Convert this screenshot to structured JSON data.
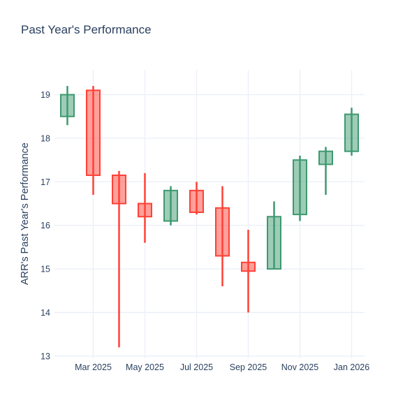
{
  "chart_data": {
    "type": "candlestick",
    "title": "Past Year's Performance",
    "xlabel": "",
    "ylabel": "ARR's Past Year's Performance",
    "categories": [
      "Feb 2025",
      "Mar 2025",
      "Apr 2025",
      "May 2025",
      "Jun 2025",
      "Jul 2025",
      "Aug 2025",
      "Sep 2025",
      "Oct 2025",
      "Nov 2025",
      "Dec 2025",
      "Jan 2026"
    ],
    "series": [
      {
        "month": "Feb 2025",
        "open": 18.5,
        "high": 19.2,
        "low": 18.3,
        "close": 19.0,
        "direction": "increasing"
      },
      {
        "month": "Mar 2025",
        "open": 19.1,
        "high": 19.2,
        "low": 16.7,
        "close": 17.15,
        "direction": "decreasing"
      },
      {
        "month": "Apr 2025",
        "open": 17.15,
        "high": 17.25,
        "low": 13.2,
        "close": 16.5,
        "direction": "decreasing"
      },
      {
        "month": "May 2025",
        "open": 16.5,
        "high": 17.2,
        "low": 15.6,
        "close": 16.2,
        "direction": "decreasing"
      },
      {
        "month": "Jun 2025",
        "open": 16.1,
        "high": 16.9,
        "low": 16.0,
        "close": 16.8,
        "direction": "increasing"
      },
      {
        "month": "Jul 2025",
        "open": 16.8,
        "high": 17.0,
        "low": 16.25,
        "close": 16.3,
        "direction": "decreasing"
      },
      {
        "month": "Aug 2025",
        "open": 16.4,
        "high": 16.9,
        "low": 14.6,
        "close": 15.3,
        "direction": "decreasing"
      },
      {
        "month": "Sep 2025",
        "open": 15.15,
        "high": 15.9,
        "low": 14.0,
        "close": 14.95,
        "direction": "decreasing"
      },
      {
        "month": "Oct 2025",
        "open": 15.0,
        "high": 16.55,
        "low": 15.0,
        "close": 16.2,
        "direction": "increasing"
      },
      {
        "month": "Nov 2025",
        "open": 16.25,
        "high": 17.6,
        "low": 16.1,
        "close": 17.5,
        "direction": "increasing"
      },
      {
        "month": "Dec 2025",
        "open": 17.4,
        "high": 17.8,
        "low": 16.7,
        "close": 17.7,
        "direction": "increasing"
      },
      {
        "month": "Jan 2026",
        "open": 17.7,
        "high": 18.7,
        "low": 17.6,
        "close": 18.55,
        "direction": "increasing"
      }
    ],
    "x_tick_labels": [
      "Mar 2025",
      "May 2025",
      "Jul 2025",
      "Sep 2025",
      "Nov 2025",
      "Jan 2026"
    ],
    "x_tick_indices": [
      1,
      3,
      5,
      7,
      9,
      11
    ],
    "y_ticks": [
      13,
      14,
      15,
      16,
      17,
      18,
      19
    ],
    "ylim": [
      12.95,
      19.57
    ],
    "grid": true,
    "legend": "none",
    "colors": {
      "increasing_line": "#3D9970",
      "increasing_fill": "rgba(61,153,112,0.5)",
      "decreasing_line": "#FF4136",
      "decreasing_fill": "rgba(255,65,54,0.5)",
      "grid": "#EBF0F8",
      "text": "#2a3f5f",
      "background": "#ffffff"
    }
  }
}
